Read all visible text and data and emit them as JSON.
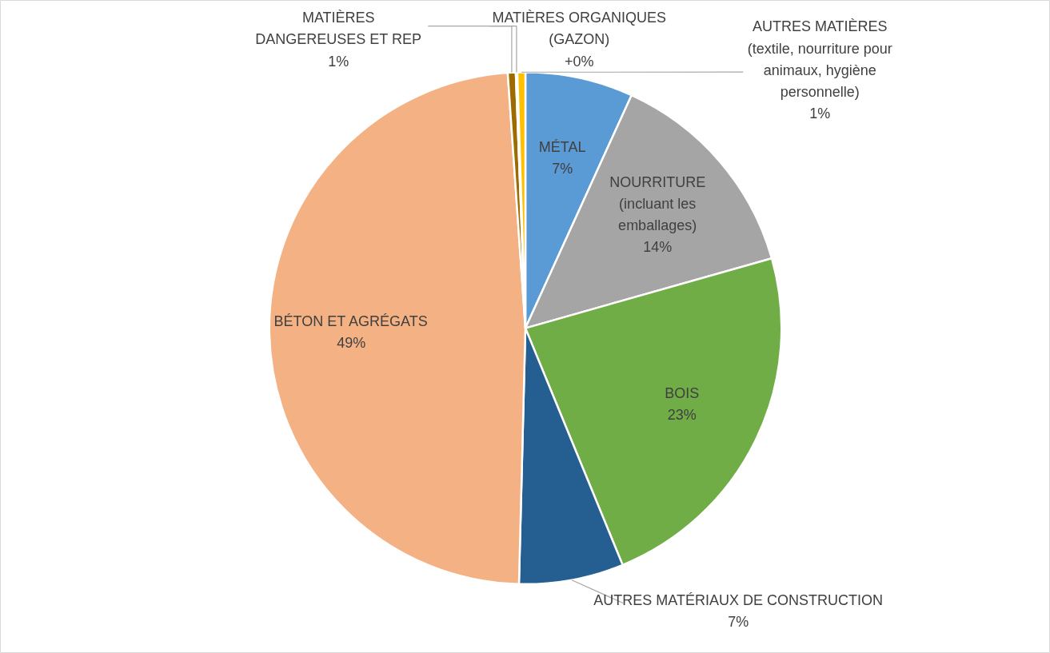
{
  "chart_data": {
    "type": "pie",
    "categories": [
      "MÉTAL",
      "NOURRITURE\n(incluant les\nemballages)",
      "BOIS",
      "AUTRES MATÉRIAUX DE CONSTRUCTION",
      "BÉTON ET AGRÉGATS",
      "MATIÈRES\nDANGEREUSES ET REP",
      "MATIÈRES ORGANIQUES\n(GAZON)",
      "AUTRES MATIÈRES\n(textile, nourriture pour\nanimaux, hygiène\npersonnelle)"
    ],
    "values": [
      6.8,
      13.8,
      23.2,
      6.6,
      48.5,
      0.5,
      0.1,
      0.5
    ],
    "value_labels": [
      "7%",
      "14%",
      "23%",
      "7%",
      "49%",
      "1%",
      "+0%",
      "1%"
    ],
    "colors": [
      "#5b9bd5",
      "#a5a5a5",
      "#70ad47",
      "#255e91",
      "#f4b183",
      "#9e6b00",
      "#ed7d31",
      "#ffc000"
    ]
  }
}
